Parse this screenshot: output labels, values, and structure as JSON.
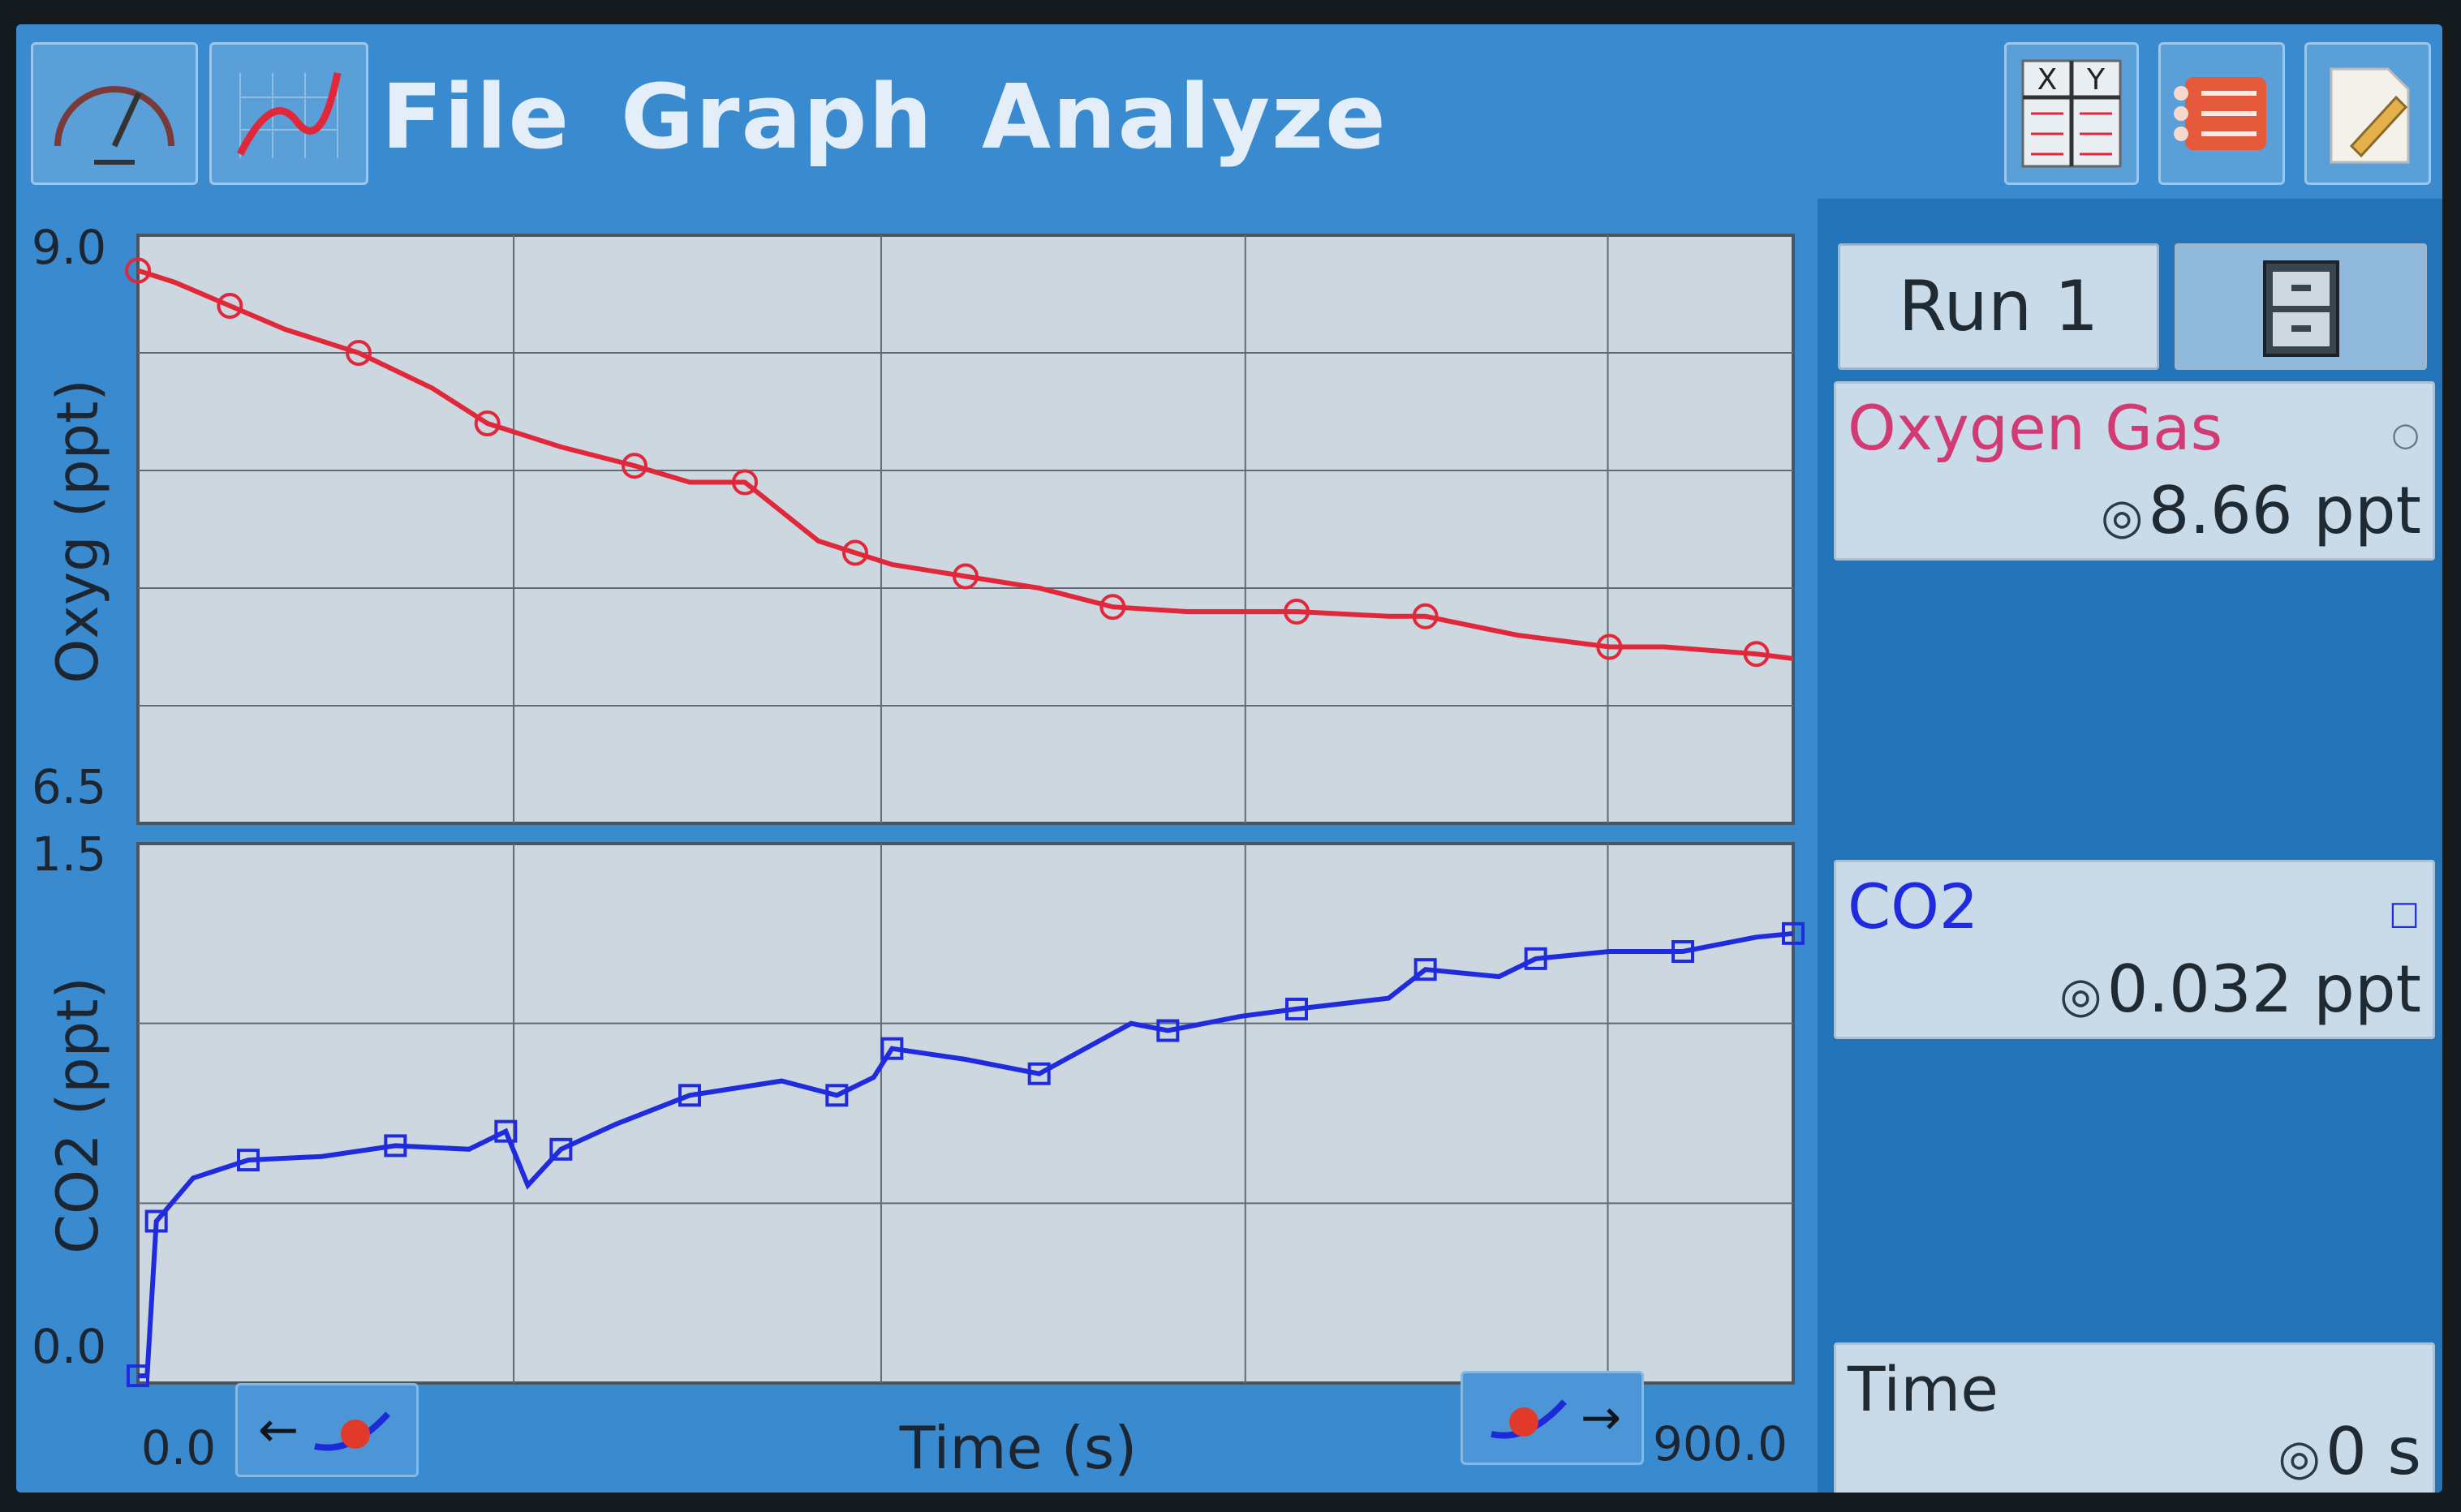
{
  "menubar": {
    "items": [
      "File",
      "Graph",
      "Analyze"
    ],
    "tools": {
      "meter": "gauge-icon",
      "graph": "graph-icon",
      "table": "xy-table-icon",
      "list": "list-icon",
      "notes": "notes-icon"
    },
    "xy_labels": [
      "X",
      "Y"
    ]
  },
  "graph": {
    "xaxis": {
      "label": "Time (s)",
      "min_label": "0.0",
      "max_label": "900.0"
    },
    "top": {
      "ylabel": "Oxyg (ppt)",
      "ymax_label": "9.0",
      "ymin_label": "6.5",
      "color": "#e0283a"
    },
    "bottom": {
      "ylabel": "CO2 (ppt)",
      "ymax_label": "1.5",
      "ymin_label": "0.0",
      "color": "#1f2bdc"
    }
  },
  "chart_data": [
    {
      "type": "line",
      "series": [
        {
          "name": "Oxygen Gas",
          "x": [
            0,
            20,
            50,
            80,
            120,
            160,
            190,
            230,
            270,
            300,
            330,
            370,
            390,
            410,
            450,
            490,
            530,
            570,
            630,
            680,
            700,
            750,
            800,
            830,
            880,
            900
          ],
          "y": [
            8.85,
            8.8,
            8.7,
            8.6,
            8.5,
            8.35,
            8.2,
            8.1,
            8.02,
            7.95,
            7.95,
            7.7,
            7.65,
            7.6,
            7.55,
            7.5,
            7.42,
            7.4,
            7.4,
            7.38,
            7.38,
            7.3,
            7.25,
            7.25,
            7.22,
            7.2
          ]
        }
      ],
      "xlim": [
        0,
        900
      ],
      "ylim": [
        6.5,
        9.0
      ],
      "ylabel": "Oxyg (ppt)",
      "grid": true
    },
    {
      "type": "line",
      "series": [
        {
          "name": "CO2",
          "x": [
            0,
            5,
            10,
            30,
            60,
            100,
            140,
            180,
            200,
            212,
            230,
            260,
            300,
            350,
            380,
            400,
            410,
            450,
            490,
            540,
            560,
            600,
            630,
            680,
            700,
            740,
            760,
            800,
            840,
            880,
            900
          ],
          "y": [
            0.02,
            0.02,
            0.45,
            0.57,
            0.62,
            0.63,
            0.66,
            0.65,
            0.7,
            0.55,
            0.65,
            0.72,
            0.8,
            0.84,
            0.8,
            0.85,
            0.93,
            0.9,
            0.86,
            1.0,
            0.98,
            1.02,
            1.04,
            1.07,
            1.15,
            1.13,
            1.18,
            1.2,
            1.2,
            1.24,
            1.25
          ]
        }
      ],
      "xlim": [
        0,
        900
      ],
      "ylim": [
        0.0,
        1.5
      ],
      "ylabel": "CO2 (ppt)",
      "grid": true
    }
  ],
  "panel": {
    "run_label": "Run 1",
    "save_icon": "file-cabinet-icon",
    "meters": [
      {
        "name": "Oxygen Gas",
        "value": "8.66 ppt",
        "color": "#d23a73",
        "marker": "○"
      },
      {
        "name": "CO2",
        "value": "0.032 ppt",
        "color": "#1f2bdc",
        "marker": "□"
      },
      {
        "name": "Time",
        "value": "0 s",
        "color": "#1f2a33",
        "marker": ""
      }
    ],
    "target_glyph": "◎"
  }
}
